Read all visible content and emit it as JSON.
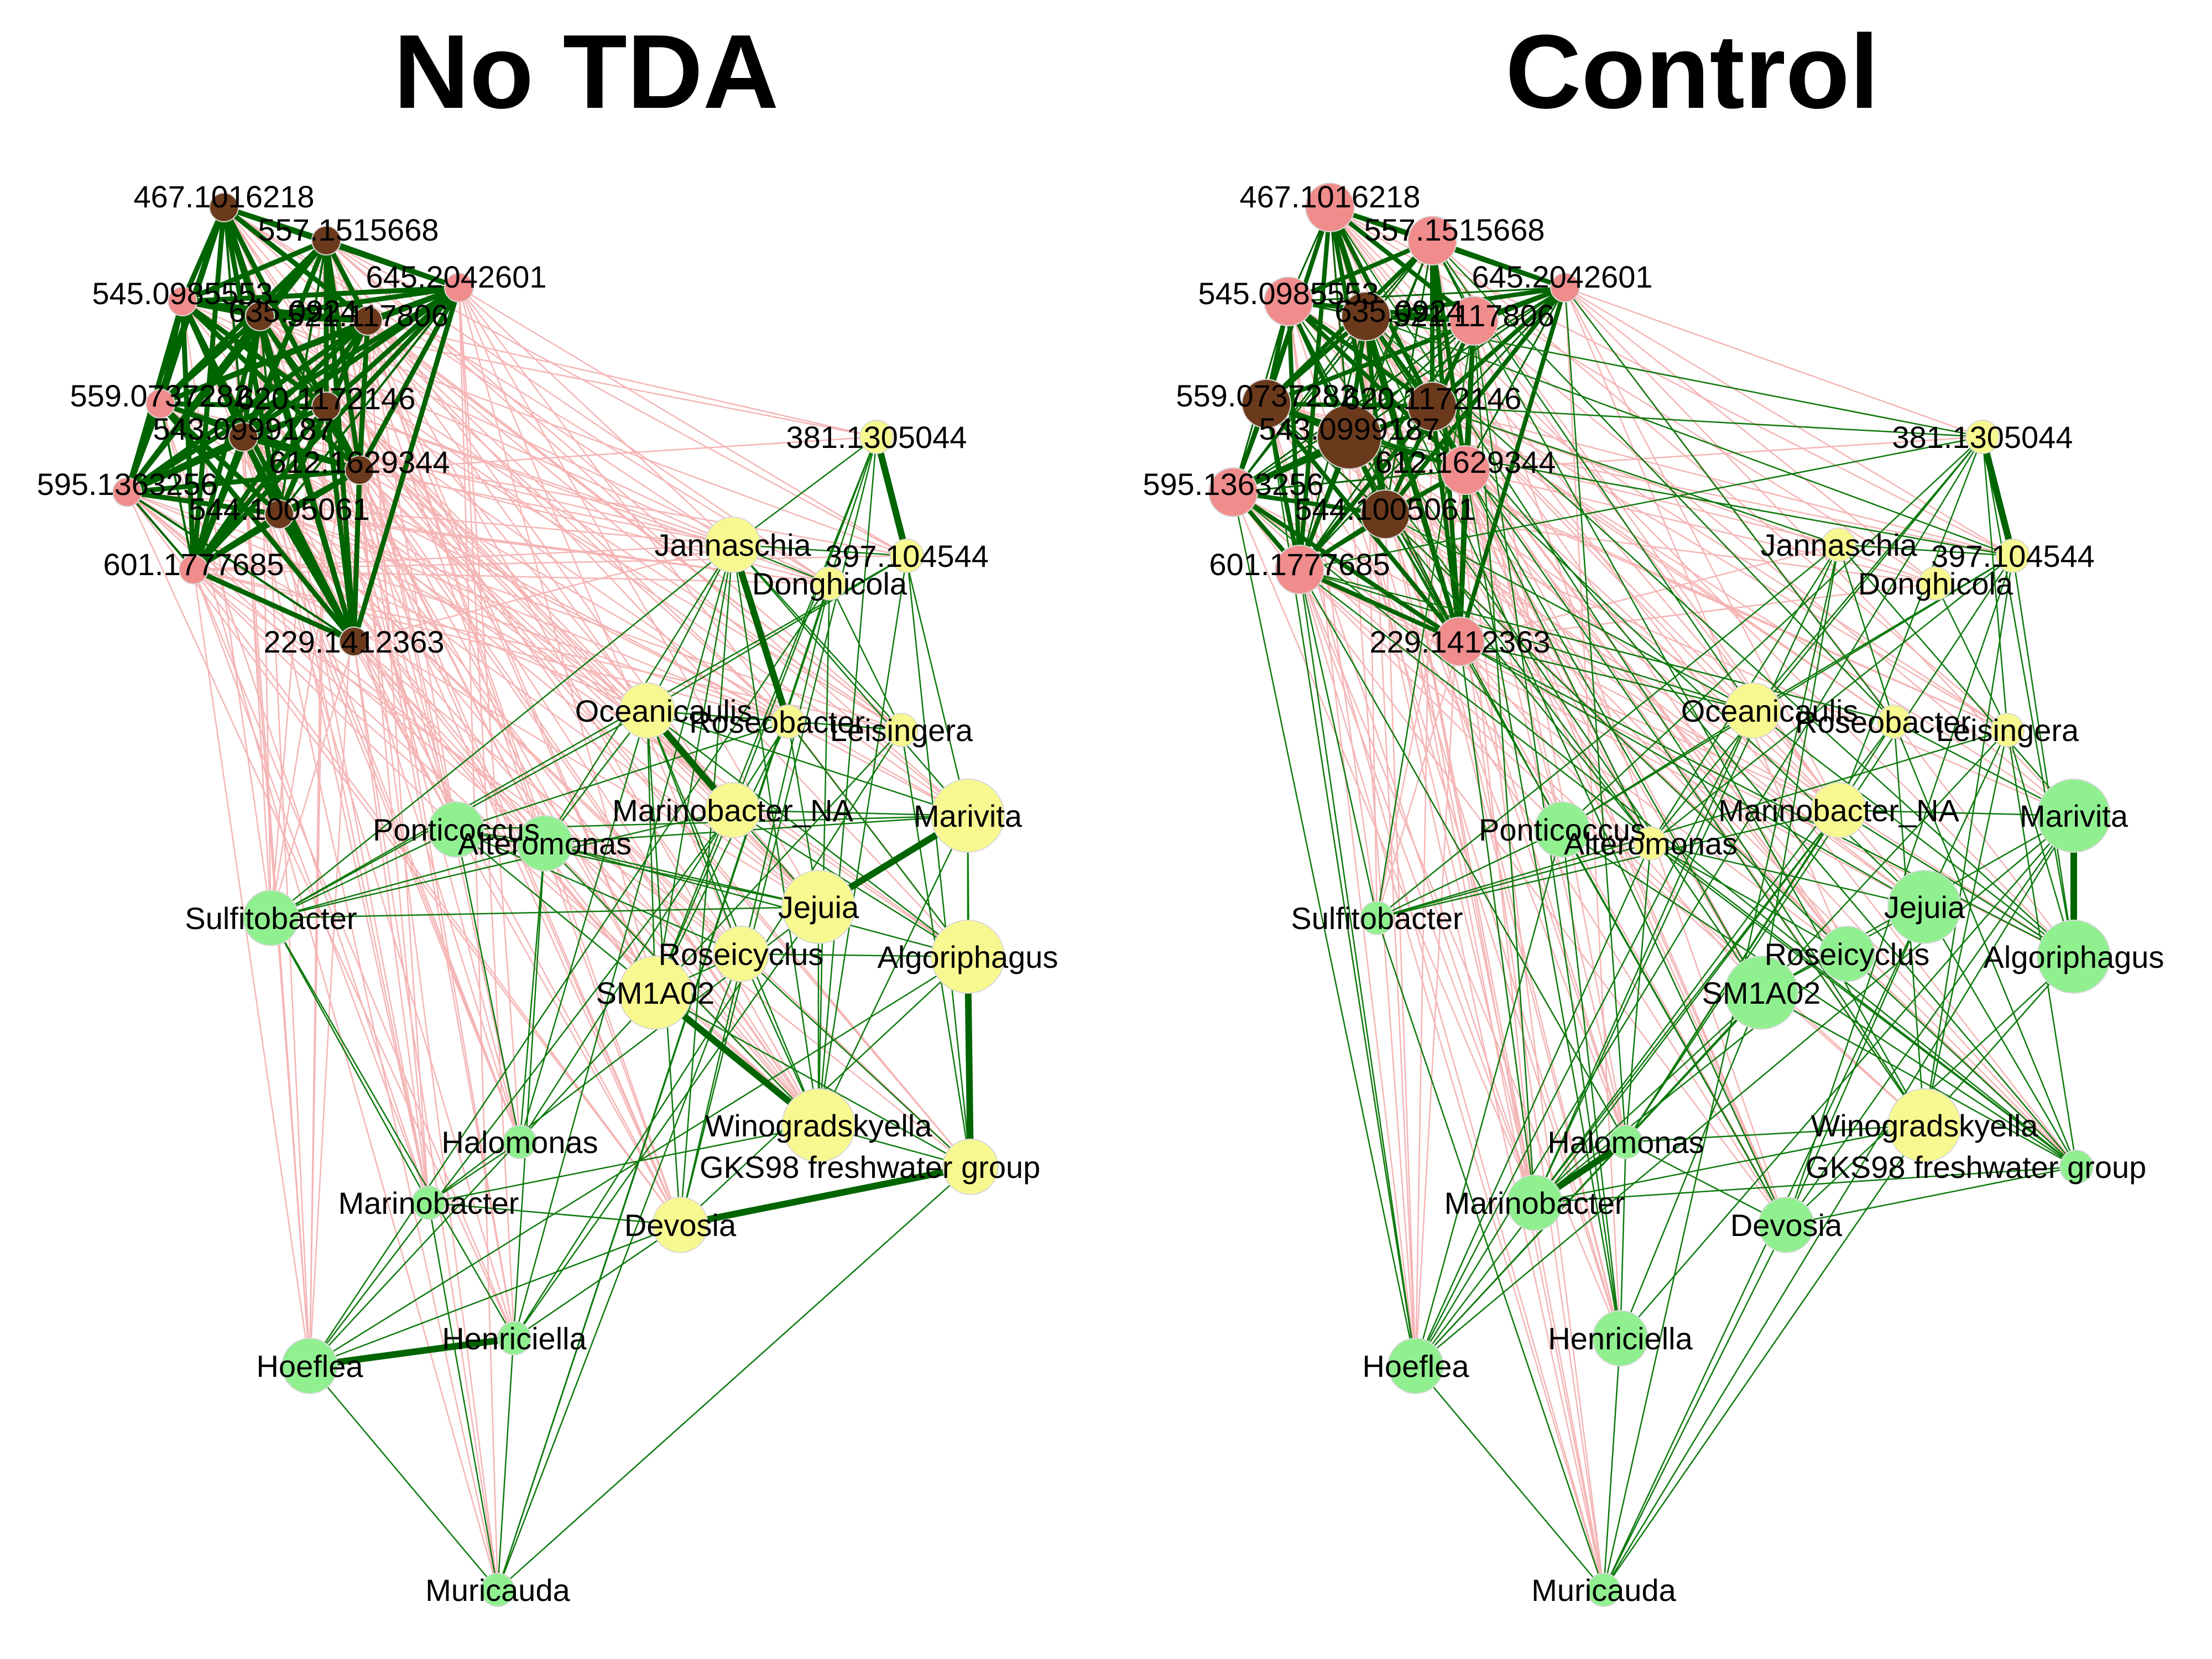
{
  "colors": {
    "background": "#ffffff",
    "metabolite_node": "#f08c8c",
    "metabolite_node_dark": "#6b3a1c",
    "genus_node_green": "#90f090",
    "genus_node_yellow": "#f8f890",
    "positive_edge": "#0d7a0d",
    "positive_edge_strong": "#006400",
    "negative_edge": "#f5b5b5"
  },
  "node_labels": [
    "467.1016218",
    "557.1515668",
    "645.2042601",
    "545.0985553",
    "635.0924",
    "521.117806",
    "559.0737282",
    "620.1172146",
    "543.0999187",
    "612.1629344",
    "595.1363256",
    "544.1005061",
    "601.1777685",
    "229.1412363",
    "381.1305044",
    "397.104544",
    "Jannaschia",
    "Donghicola",
    "Oceanicaulis",
    "Roseobacter",
    "Leisingera",
    "Marinobacter_NA",
    "Marivita",
    "Ponticoccus",
    "Alteromonas",
    "Sulfitobacter",
    "Jejuia",
    "Roseicyclus",
    "Algoriphagus",
    "SM1A02",
    "Winogradskyella",
    "GKS98 freshwater group",
    "Halomonas",
    "Marinobacter",
    "Devosia",
    "Henriciella",
    "Hoeflea",
    "Muricauda"
  ],
  "panels": [
    {
      "title": "No TDA",
      "nodes": [
        {
          "label": "467.1016218",
          "type": "metabolite",
          "shade": "dark",
          "size": "small"
        },
        {
          "label": "557.1515668",
          "type": "metabolite",
          "shade": "dark",
          "size": "small"
        },
        {
          "label": "645.2042601",
          "type": "metabolite",
          "shade": "light",
          "size": "small"
        },
        {
          "label": "545.0985553",
          "type": "metabolite",
          "shade": "light",
          "size": "small"
        },
        {
          "label": "635.0924",
          "type": "metabolite",
          "shade": "dark",
          "size": "small"
        },
        {
          "label": "521.117806",
          "type": "metabolite",
          "shade": "dark",
          "size": "small"
        },
        {
          "label": "559.0737282",
          "type": "metabolite",
          "shade": "light",
          "size": "small"
        },
        {
          "label": "620.1172146",
          "type": "metabolite",
          "shade": "dark",
          "size": "small"
        },
        {
          "label": "543.0999187",
          "type": "metabolite",
          "shade": "dark",
          "size": "small"
        },
        {
          "label": "612.1629344",
          "type": "metabolite",
          "shade": "dark",
          "size": "small"
        },
        {
          "label": "595.1363256",
          "type": "metabolite",
          "shade": "light",
          "size": "small"
        },
        {
          "label": "544.1005061",
          "type": "metabolite",
          "shade": "dark",
          "size": "small"
        },
        {
          "label": "601.1777685",
          "type": "metabolite",
          "shade": "light",
          "size": "small"
        },
        {
          "label": "229.1412363",
          "type": "metabolite",
          "shade": "dark",
          "size": "small"
        },
        {
          "label": "381.1305044",
          "type": "genus",
          "shade": "yellow",
          "size": "small"
        },
        {
          "label": "397.104544",
          "type": "genus",
          "shade": "yellow",
          "size": "small"
        },
        {
          "label": "Jannaschia",
          "type": "genus",
          "shade": "yellow",
          "size": "medium"
        },
        {
          "label": "Donghicola",
          "type": "genus",
          "shade": "yellow",
          "size": "small"
        },
        {
          "label": "Oceanicaulis",
          "type": "genus",
          "shade": "yellow",
          "size": "medium"
        },
        {
          "label": "Roseobacter",
          "type": "genus",
          "shade": "yellow",
          "size": "small"
        },
        {
          "label": "Leisingera",
          "type": "genus",
          "shade": "yellow",
          "size": "small"
        },
        {
          "label": "Marinobacter_NA",
          "type": "genus",
          "shade": "yellow",
          "size": "medium"
        },
        {
          "label": "Marivita",
          "type": "genus",
          "shade": "yellow",
          "size": "large"
        },
        {
          "label": "Ponticoccus",
          "type": "genus",
          "shade": "green",
          "size": "medium"
        },
        {
          "label": "Alteromonas",
          "type": "genus",
          "shade": "green",
          "size": "medium"
        },
        {
          "label": "Sulfitobacter",
          "type": "genus",
          "shade": "green",
          "size": "medium"
        },
        {
          "label": "Jejuia",
          "type": "genus",
          "shade": "yellow",
          "size": "large"
        },
        {
          "label": "Roseicyclus",
          "type": "genus",
          "shade": "yellow",
          "size": "medium"
        },
        {
          "label": "Algoriphagus",
          "type": "genus",
          "shade": "yellow",
          "size": "large"
        },
        {
          "label": "SM1A02",
          "type": "genus",
          "shade": "yellow",
          "size": "large"
        },
        {
          "label": "Winogradskyella",
          "type": "genus",
          "shade": "yellow",
          "size": "large"
        },
        {
          "label": "GKS98 freshwater group",
          "type": "genus",
          "shade": "yellow",
          "size": "medium"
        },
        {
          "label": "Halomonas",
          "type": "genus",
          "shade": "green",
          "size": "small"
        },
        {
          "label": "Marinobacter",
          "type": "genus",
          "shade": "green",
          "size": "small"
        },
        {
          "label": "Devosia",
          "type": "genus",
          "shade": "yellow",
          "size": "medium"
        },
        {
          "label": "Henriciella",
          "type": "genus",
          "shade": "green",
          "size": "small"
        },
        {
          "label": "Hoeflea",
          "type": "genus",
          "shade": "green",
          "size": "medium"
        },
        {
          "label": "Muricauda",
          "type": "genus",
          "shade": "green",
          "size": "small"
        }
      ]
    },
    {
      "title": "Control",
      "nodes": [
        {
          "label": "467.1016218",
          "type": "metabolite",
          "shade": "light",
          "size": "medium"
        },
        {
          "label": "557.1515668",
          "type": "metabolite",
          "shade": "light",
          "size": "medium"
        },
        {
          "label": "645.2042601",
          "type": "metabolite",
          "shade": "light",
          "size": "small"
        },
        {
          "label": "545.0985553",
          "type": "metabolite",
          "shade": "light",
          "size": "medium"
        },
        {
          "label": "635.0924",
          "type": "metabolite",
          "shade": "dark",
          "size": "medium"
        },
        {
          "label": "521.117806",
          "type": "metabolite",
          "shade": "light",
          "size": "medium"
        },
        {
          "label": "559.0737282",
          "type": "metabolite",
          "shade": "dark",
          "size": "medium"
        },
        {
          "label": "620.1172146",
          "type": "metabolite",
          "shade": "dark",
          "size": "medium"
        },
        {
          "label": "543.0999187",
          "type": "metabolite",
          "shade": "dark",
          "size": "large"
        },
        {
          "label": "612.1629344",
          "type": "metabolite",
          "shade": "light",
          "size": "medium"
        },
        {
          "label": "595.1363256",
          "type": "metabolite",
          "shade": "light",
          "size": "medium"
        },
        {
          "label": "544.1005061",
          "type": "metabolite",
          "shade": "dark",
          "size": "medium"
        },
        {
          "label": "601.1777685",
          "type": "metabolite",
          "shade": "light",
          "size": "medium"
        },
        {
          "label": "229.1412363",
          "type": "metabolite",
          "shade": "light",
          "size": "medium"
        },
        {
          "label": "381.1305044",
          "type": "genus",
          "shade": "yellow",
          "size": "small"
        },
        {
          "label": "397.104544",
          "type": "genus",
          "shade": "yellow",
          "size": "small"
        },
        {
          "label": "Jannaschia",
          "type": "genus",
          "shade": "yellow",
          "size": "small"
        },
        {
          "label": "Donghicola",
          "type": "genus",
          "shade": "yellow",
          "size": "small"
        },
        {
          "label": "Oceanicaulis",
          "type": "genus",
          "shade": "yellow",
          "size": "medium"
        },
        {
          "label": "Roseobacter",
          "type": "genus",
          "shade": "yellow",
          "size": "small"
        },
        {
          "label": "Leisingera",
          "type": "genus",
          "shade": "yellow",
          "size": "small"
        },
        {
          "label": "Marinobacter_NA",
          "type": "genus",
          "shade": "yellow",
          "size": "medium"
        },
        {
          "label": "Marivita",
          "type": "genus",
          "shade": "green",
          "size": "large"
        },
        {
          "label": "Ponticoccus",
          "type": "genus",
          "shade": "green",
          "size": "medium"
        },
        {
          "label": "Alteromonas",
          "type": "genus",
          "shade": "yellow",
          "size": "small"
        },
        {
          "label": "Sulfitobacter",
          "type": "genus",
          "shade": "green",
          "size": "small"
        },
        {
          "label": "Jejuia",
          "type": "genus",
          "shade": "green",
          "size": "large"
        },
        {
          "label": "Roseicyclus",
          "type": "genus",
          "shade": "green",
          "size": "medium"
        },
        {
          "label": "Algoriphagus",
          "type": "genus",
          "shade": "green",
          "size": "large"
        },
        {
          "label": "SM1A02",
          "type": "genus",
          "shade": "green",
          "size": "large"
        },
        {
          "label": "Winogradskyella",
          "type": "genus",
          "shade": "yellow",
          "size": "large"
        },
        {
          "label": "GKS98 freshwater group",
          "type": "genus",
          "shade": "green",
          "size": "small"
        },
        {
          "label": "Halomonas",
          "type": "genus",
          "shade": "green",
          "size": "small"
        },
        {
          "label": "Marinobacter",
          "type": "genus",
          "shade": "green",
          "size": "medium"
        },
        {
          "label": "Devosia",
          "type": "genus",
          "shade": "green",
          "size": "medium"
        },
        {
          "label": "Henriciella",
          "type": "genus",
          "shade": "green",
          "size": "medium"
        },
        {
          "label": "Hoeflea",
          "type": "genus",
          "shade": "green",
          "size": "medium"
        },
        {
          "label": "Muricauda",
          "type": "genus",
          "shade": "green",
          "size": "small"
        }
      ]
    }
  ]
}
